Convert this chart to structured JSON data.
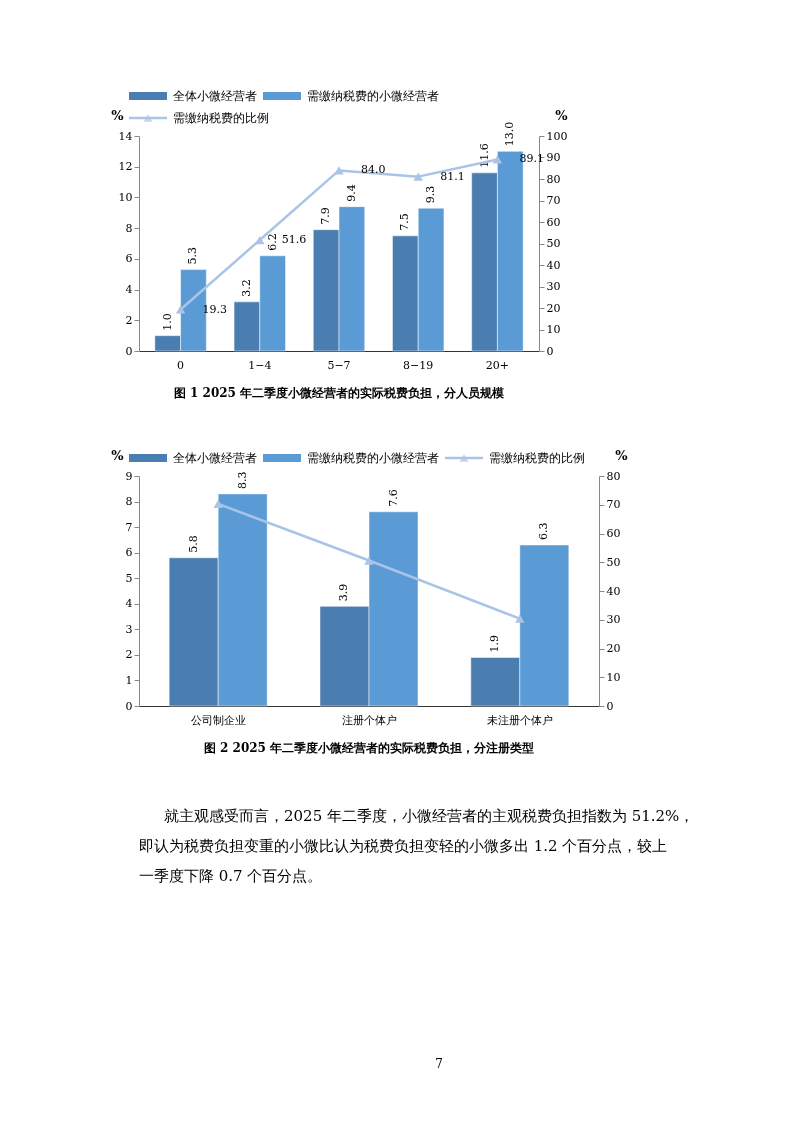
{
  "chart_data": [
    {
      "type": "bar",
      "title": "图 1 2025 年二季度小微经营者的实际税费负担，分人员规模",
      "ylabel": "%",
      "y2label": "%",
      "categories": [
        "0",
        "1−4",
        "5−7",
        "8−19",
        "20+"
      ],
      "series": [
        {
          "name": "全体小微经营者",
          "color": "#4a7eb0",
          "values": [
            1.0,
            3.2,
            7.9,
            7.5,
            11.6
          ],
          "value_labels": [
            "1.0",
            "3.2",
            "7.9",
            "7.5",
            "11.6"
          ]
        },
        {
          "name": "需缴纳税费的小微经营者",
          "color": "#5b9bd5",
          "values": [
            5.3,
            6.2,
            9.4,
            9.3,
            13.0
          ],
          "value_labels": [
            "5.3",
            "6.2",
            "9.4",
            "9.3",
            "13.0"
          ]
        },
        {
          "name": "需缴纳税费的比例",
          "type": "line",
          "axis": "y2",
          "color": "#a9c4e6",
          "values": [
            19.3,
            51.6,
            84.0,
            81.1,
            89.1
          ],
          "value_labels": [
            "19.3",
            "51.6",
            "84.0",
            "81.1",
            "89.1"
          ],
          "line_style": "solid"
        }
      ],
      "ylim": [
        0,
        14
      ],
      "yticks": [
        0,
        2,
        4,
        6,
        8,
        10,
        12,
        14
      ],
      "y2lim": [
        0,
        100
      ],
      "y2ticks": [
        0,
        10,
        20,
        30,
        40,
        50,
        60,
        70,
        80,
        90,
        100
      ],
      "legend": "top",
      "marker": "triangle",
      "grid": false
    },
    {
      "type": "bar",
      "title": "图 2 2025 年二季度小微经营者的实际税费负担，分注册类型",
      "ylabel": "%",
      "y2label": "%",
      "categories": [
        "公司制企业",
        "注册个体户",
        "未注册个体户"
      ],
      "series": [
        {
          "name": "全体小微经营者",
          "color": "#4a7eb0",
          "values": [
            5.8,
            3.9,
            1.9
          ],
          "value_labels": [
            "5.8",
            "3.9",
            "1.9"
          ]
        },
        {
          "name": "需缴纳税费的小微经营者",
          "color": "#5b9bd5",
          "values": [
            8.3,
            7.6,
            6.3
          ],
          "value_labels": [
            "8.3",
            "7.6",
            "6.3"
          ]
        },
        {
          "name": "需缴纳税费的比例",
          "type": "line",
          "axis": "y2",
          "color": "#a9c4e6",
          "values": [
            70.3,
            50.6,
            30.4
          ],
          "line_style": "solid"
        }
      ],
      "ylim": [
        0,
        9
      ],
      "yticks": [
        0,
        1,
        2,
        3,
        4,
        5,
        6,
        7,
        8,
        9
      ],
      "y2lim": [
        0,
        80
      ],
      "y2ticks": [
        0,
        10,
        20,
        30,
        40,
        50,
        60,
        70,
        80
      ],
      "legend": "top",
      "marker": "triangle",
      "grid": false,
      "annotations": [
        "就主观感受而言，2025 年二季度，小微经营者的主观税费负担指数为 51.2%，",
        "即认为税费负担变重的小微比认为税费负担变轻的小微多出 1.2 个百分点，较上",
        "一季度下降 0.7 个百分点。",
        "7"
      ]
    }
  ]
}
